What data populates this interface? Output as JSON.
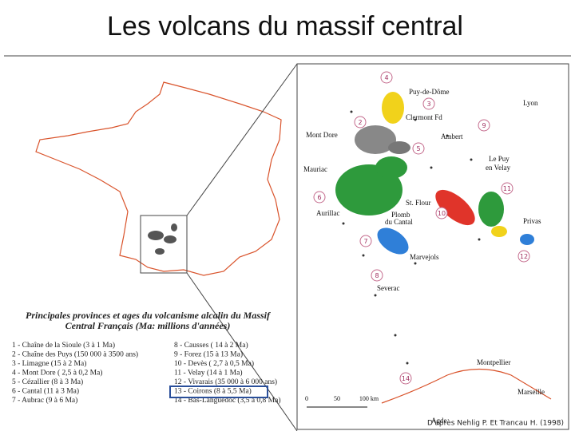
{
  "title": "Les volcans du massif central",
  "legend": {
    "title": [
      "Principales provinces et ages du volcanisme alcalin du Massif",
      "Central Français (Ma: millions d'années)"
    ],
    "items": [
      "1 - Chaîne de la Sioule (3 à 1 Ma)",
      "2 - Chaîne des Puys (150 000 à 3500 ans)",
      "3 - Limagne (15 à 2 Ma)",
      "4 - Mont Dore ( 2,5 à 0,2 Ma)",
      "5 - Cézallier (8 à 3 Ma)",
      "6 - Cantal (11 à 3 Ma)",
      "7 - Aubrac (9 à 6 Ma)",
      "8 - Causses ( 14 à 2 Ma)",
      "9 - Forez (15 à 13 Ma)",
      "10 - Devès ( 2,7 à 0,5 Ma)",
      "11 - Velay (14 à 1 Ma)",
      "12 - Vivarais (35 000 à 6 000 ans)",
      "13 - Coirons (8 à 5,5 Ma)",
      "14 - Bas-Languedoc (3,5 à 0,8 Ma)"
    ]
  },
  "map": {
    "places": [
      "Puy-de-Dôme",
      "Clermont Fd",
      "Lyon",
      "Mont Dore",
      "Ambert",
      "Le Puy",
      "en Velay",
      "Mauriac",
      "St. Flour",
      "Aurillac",
      "Plomb",
      "du Cantal",
      "Privas",
      "Marvejols",
      "Severac",
      "Montpellier",
      "Marseille",
      "Agde"
    ],
    "markers": [
      "4",
      "3",
      "2",
      "9",
      "5",
      "6",
      "11",
      "10",
      "7",
      "12",
      "8",
      "14"
    ],
    "scale": [
      "0",
      "50",
      "100 km"
    ],
    "credit": "D'après Nehlig P. Et Trancau H. (1998)"
  }
}
